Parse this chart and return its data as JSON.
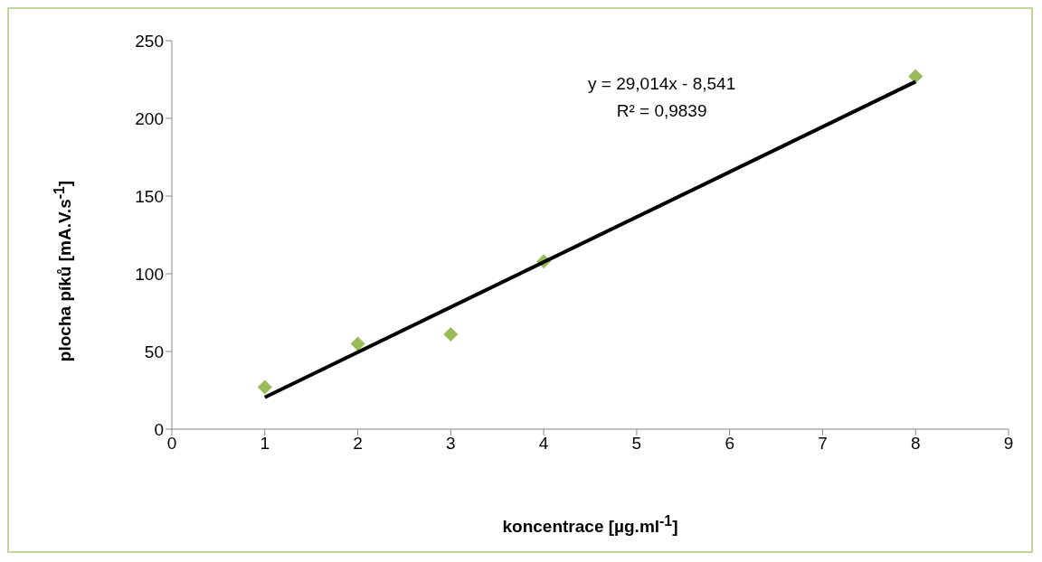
{
  "chart_data": {
    "type": "scatter",
    "xlabel": "koncentrace [µg.ml$^{-1}$]",
    "ylabel": "plocha píků [mA.V.s$^{-1}$]",
    "annotations": [
      "y = 29,014x - 8,541",
      "R² = 0,9839"
    ],
    "xlim": [
      0,
      9
    ],
    "xticks": [
      0,
      1,
      2,
      3,
      4,
      5,
      6,
      7,
      8,
      9
    ],
    "ylim": [
      0,
      250
    ],
    "yticks": [
      0,
      50,
      100,
      150,
      200,
      250
    ],
    "grid": false,
    "legend": false,
    "series": [
      {
        "type": "scatter",
        "color": "#9bbb59",
        "marker": "diamond",
        "x": [
          1,
          2,
          3,
          4,
          8
        ],
        "values": [
          27,
          55,
          61,
          108,
          227
        ]
      },
      {
        "type": "line",
        "color": "#000000",
        "marker": "none",
        "x": [
          1,
          8
        ],
        "values": [
          20.5,
          223.6
        ]
      }
    ]
  }
}
